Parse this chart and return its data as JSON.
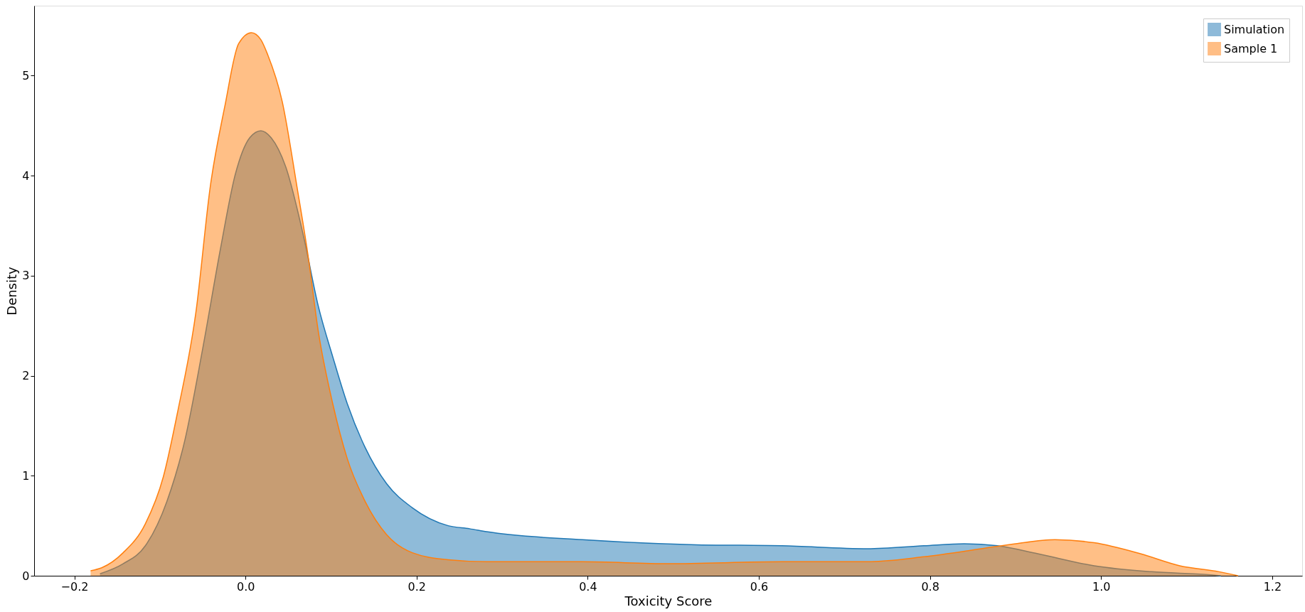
{
  "chart_data": {
    "type": "area",
    "xlabel": "Toxicity Score",
    "ylabel": "Density",
    "xlim": [
      -0.247,
      1.235
    ],
    "ylim": [
      0,
      5.7
    ],
    "xticks": [
      {
        "value": -0.2,
        "label": "−0.2"
      },
      {
        "value": 0,
        "label": "0.0"
      },
      {
        "value": 0.2,
        "label": "0.2"
      },
      {
        "value": 0.4,
        "label": "0.4"
      },
      {
        "value": 0.6,
        "label": "0.6"
      },
      {
        "value": 0.8,
        "label": "0.8"
      },
      {
        "value": 1.0,
        "label": "1.0"
      },
      {
        "value": 1.2,
        "label": "1.2"
      }
    ],
    "yticks": [
      0,
      1,
      2,
      3,
      4,
      5
    ],
    "grid": false,
    "legend": "top right",
    "series": [
      {
        "name": "Simulation",
        "color": "#1f77b4",
        "x": [
          -0.17,
          -0.143,
          -0.117,
          -0.092,
          -0.071,
          -0.05,
          -0.029,
          -0.012,
          0.005,
          0.018,
          0.03,
          0.047,
          0.068,
          0.085,
          0.102,
          0.119,
          0.14,
          0.165,
          0.195,
          0.237,
          0.262,
          0.282,
          0.394,
          0.527,
          0.627,
          0.727,
          0.793,
          0.84,
          0.879,
          0.926,
          0.992,
          1.059,
          1.126,
          1.14
        ],
        "values": [
          0.02,
          0.12,
          0.3,
          0.74,
          1.35,
          2.27,
          3.28,
          4.01,
          4.38,
          4.45,
          4.38,
          4.09,
          3.39,
          2.7,
          2.19,
          1.72,
          1.28,
          0.92,
          0.68,
          0.5,
          0.47,
          0.44,
          0.36,
          0.31,
          0.3,
          0.27,
          0.3,
          0.32,
          0.3,
          0.22,
          0.1,
          0.04,
          0.01,
          0.0
        ]
      },
      {
        "name": "Sample 1",
        "color": "#ff7f0e",
        "x": [
          -0.181,
          -0.168,
          -0.143,
          -0.117,
          -0.096,
          -0.079,
          -0.058,
          -0.041,
          -0.024,
          -0.008,
          0.007,
          0.018,
          0.026,
          0.043,
          0.06,
          0.073,
          0.085,
          0.102,
          0.119,
          0.14,
          0.165,
          0.195,
          0.237,
          0.282,
          0.394,
          0.494,
          0.627,
          0.727,
          0.793,
          0.86,
          0.9,
          0.946,
          0.992,
          1.046,
          1.092,
          1.138,
          1.16
        ],
        "values": [
          0.05,
          0.08,
          0.23,
          0.52,
          0.99,
          1.65,
          2.63,
          3.9,
          4.7,
          5.32,
          5.43,
          5.36,
          5.21,
          4.74,
          3.9,
          3.21,
          2.45,
          1.72,
          1.17,
          0.74,
          0.41,
          0.23,
          0.16,
          0.14,
          0.14,
          0.12,
          0.14,
          0.14,
          0.19,
          0.27,
          0.32,
          0.36,
          0.33,
          0.22,
          0.1,
          0.04,
          0.0
        ]
      }
    ]
  }
}
